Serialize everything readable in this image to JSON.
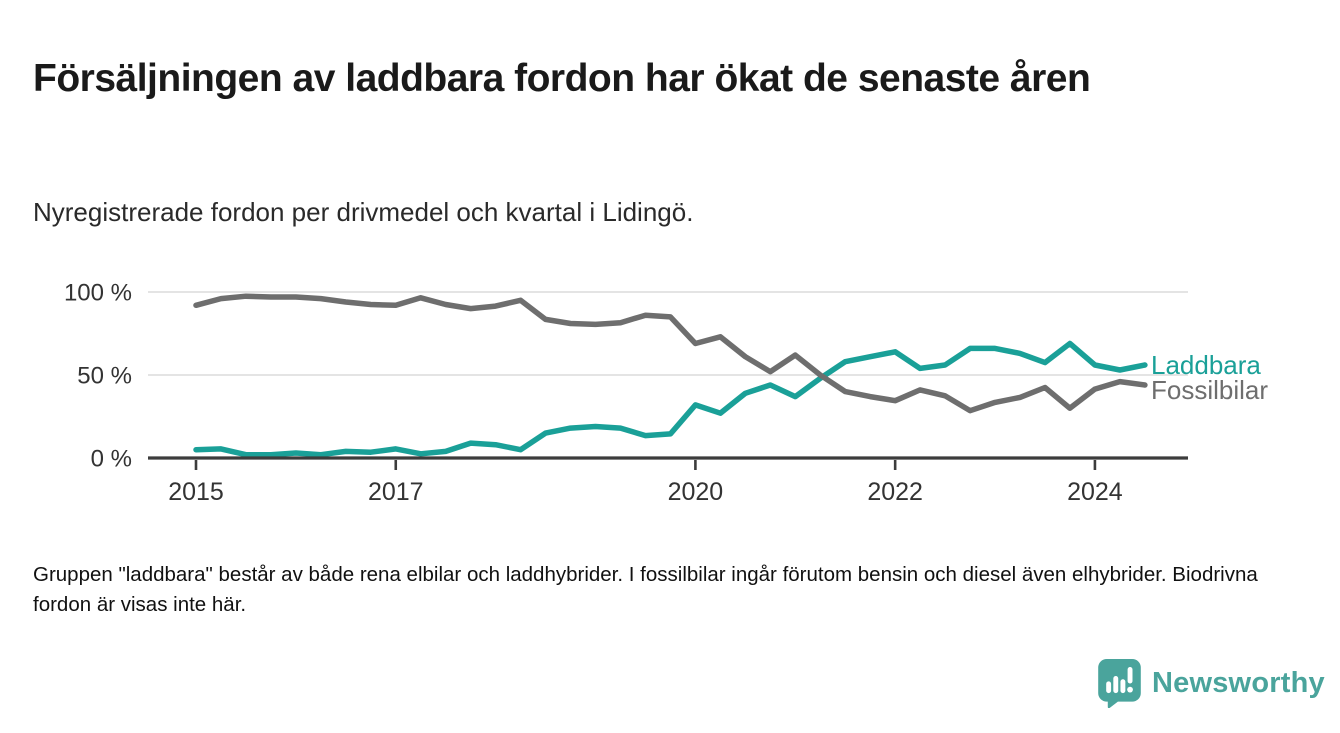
{
  "header": {
    "title": "Försäljningen av laddbara fordon har ökat de senaste åren",
    "subtitle": "Nyregistrerade fordon per drivmedel och kvartal i Lidingö."
  },
  "chart_data": {
    "type": "line",
    "title": "Försäljningen av laddbara fordon har ökat de senaste åren",
    "subtitle": "Nyregistrerade fordon per drivmedel och kvartal i Lidingö.",
    "x_axis": {
      "unit": "quarter",
      "start_year": 2015,
      "start_quarter": 1,
      "end_year": 2024,
      "end_quarter": 3,
      "tick_years": [
        2015,
        2017,
        2020,
        2022,
        2024
      ],
      "tick_labels": [
        "2015",
        "2017",
        "2020",
        "2022",
        "2024"
      ]
    },
    "y_axis": {
      "ticks": [
        0,
        50,
        100
      ],
      "tick_labels": [
        "0 %",
        "50 %",
        "100 %"
      ],
      "ylim": [
        0,
        100
      ],
      "grid": "horizontal"
    },
    "legend_position": "right-of-line-end",
    "series": [
      {
        "name": "Laddbara",
        "color": "#1aa098",
        "values": [
          5,
          5.5,
          2,
          2,
          3,
          2,
          4,
          3.5,
          5.5,
          2.5,
          4,
          9,
          8,
          5,
          15,
          18,
          19,
          18,
          13.5,
          14.5,
          32,
          27,
          39,
          44,
          37,
          48,
          58,
          61,
          64,
          54,
          56,
          66,
          66,
          63,
          57.5,
          69,
          56,
          53,
          56
        ]
      },
      {
        "name": "Fossilbilar",
        "color": "#6e6e6e",
        "values": [
          92,
          96,
          97.5,
          97,
          97,
          96,
          94,
          92.5,
          92,
          96.5,
          92.5,
          90,
          91.5,
          95,
          83.5,
          81,
          80.5,
          81.5,
          86,
          85,
          69,
          73,
          61,
          52,
          62,
          50,
          40,
          37,
          34.5,
          41,
          37.5,
          28.5,
          33.5,
          36.5,
          42.5,
          30,
          41.5,
          46,
          44
        ]
      }
    ]
  },
  "footer": {
    "note": "Gruppen \"laddbara\" består av både rena elbilar och laddhybrider. I fossilbilar ingår förutom bensin och diesel även elhybrider. Biodrivna fordon är visas inte här."
  },
  "branding": {
    "name": "Newsworthy",
    "color": "#4aa49c",
    "icon": "newsworthy-chart-bubble-icon"
  }
}
